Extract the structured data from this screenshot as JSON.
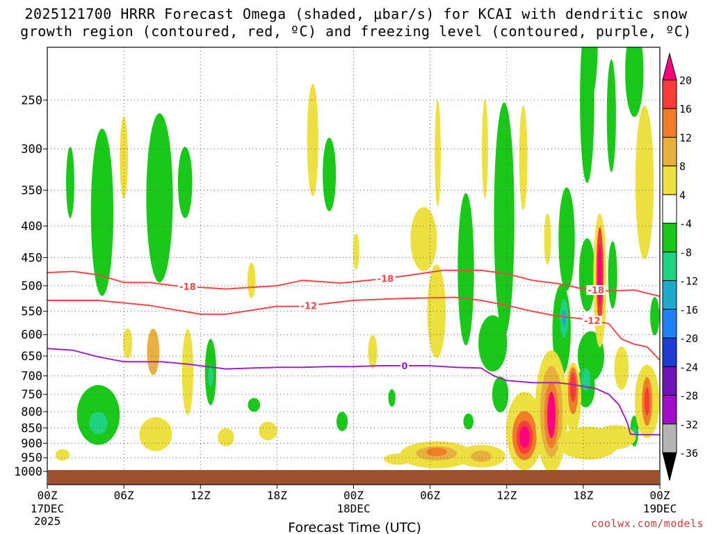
{
  "chart_data": {
    "type": "heatmap",
    "title_line1": "2025121700 HRRR Forecast Omega (shaded, μbar/s) for KCAI with dendritic snow",
    "title_line2": "growth region (contoured, red, ºC) and freezing level (contoured, purple, ºC)",
    "xlabel": "Forecast Time (UTC)",
    "x_range_hours": [
      0,
      48
    ],
    "x_ticks": [
      {
        "h": 0,
        "l1": "00Z",
        "l2": "17DEC",
        "l3": "2025"
      },
      {
        "h": 6,
        "l1": "06Z"
      },
      {
        "h": 12,
        "l1": "12Z"
      },
      {
        "h": 18,
        "l1": "18Z"
      },
      {
        "h": 24,
        "l1": "00Z",
        "l2": "18DEC"
      },
      {
        "h": 30,
        "l1": "06Z"
      },
      {
        "h": 36,
        "l1": "12Z"
      },
      {
        "h": 42,
        "l1": "18Z"
      },
      {
        "h": 48,
        "l1": "00Z",
        "l2": "19DEC"
      }
    ],
    "y_label_pressures": [
      "250",
      "300",
      "350",
      "400",
      "450",
      "500",
      "550",
      "600",
      "650",
      "700",
      "750",
      "800",
      "850",
      "900",
      "950",
      "1000"
    ],
    "y_range_hpa": [
      200,
      1030
    ],
    "colorbar": {
      "labels": [
        "20",
        "16",
        "12",
        "8",
        "4",
        "-4",
        "-8",
        "-12",
        "-16",
        "-20",
        "-24",
        "-28",
        "-32",
        "-36"
      ],
      "colors": [
        "#ff0080",
        "#ff3a3a",
        "#f07d28",
        "#e8b03c",
        "#ede040",
        "#ffffff",
        "#19c819",
        "#1ed282",
        "#1eaacc",
        "#1e82ff",
        "#1e3cd2",
        "#6e14b4",
        "#a010c8",
        "#b4b4b4"
      ]
    },
    "contours": [
      {
        "label": "-18",
        "color": "#f04646",
        "points": [
          [
            0,
            476
          ],
          [
            2,
            474
          ],
          [
            4,
            480
          ],
          [
            6,
            494
          ],
          [
            8,
            494
          ],
          [
            10,
            500
          ],
          [
            14,
            506
          ],
          [
            18,
            500
          ],
          [
            20,
            490
          ],
          [
            23,
            495
          ],
          [
            26,
            488
          ],
          [
            28,
            482
          ],
          [
            31,
            472
          ],
          [
            34,
            472
          ],
          [
            36,
            478
          ],
          [
            38,
            490
          ],
          [
            40,
            496
          ],
          [
            42,
            506
          ],
          [
            44,
            510
          ],
          [
            46,
            508
          ],
          [
            48,
            520
          ]
        ]
      },
      {
        "label": "-12",
        "color": "#f04646",
        "points": [
          [
            0,
            528
          ],
          [
            4,
            528
          ],
          [
            8,
            538
          ],
          [
            12,
            556
          ],
          [
            14,
            556
          ],
          [
            18,
            540
          ],
          [
            20,
            540
          ],
          [
            22,
            534
          ],
          [
            24,
            528
          ],
          [
            28,
            524
          ],
          [
            32,
            522
          ],
          [
            34,
            528
          ],
          [
            36,
            538
          ],
          [
            38,
            550
          ],
          [
            40,
            560
          ],
          [
            42,
            566
          ],
          [
            44,
            576
          ],
          [
            45,
            610
          ],
          [
            46,
            622
          ],
          [
            47,
            628
          ],
          [
            48,
            660
          ]
        ]
      },
      {
        "label": "0",
        "color": "#a020c8",
        "points": [
          [
            0,
            632
          ],
          [
            2,
            636
          ],
          [
            4,
            652
          ],
          [
            6,
            664
          ],
          [
            9,
            664
          ],
          [
            11,
            670
          ],
          [
            14,
            682
          ],
          [
            16,
            680
          ],
          [
            18,
            678
          ],
          [
            20,
            678
          ],
          [
            22,
            676
          ],
          [
            24,
            676
          ],
          [
            26,
            674
          ],
          [
            28,
            674
          ],
          [
            30,
            674
          ],
          [
            32,
            678
          ],
          [
            34,
            680
          ],
          [
            35,
            700
          ],
          [
            36,
            712
          ],
          [
            38,
            718
          ],
          [
            40,
            718
          ],
          [
            41,
            722
          ],
          [
            42,
            728
          ],
          [
            43,
            734
          ],
          [
            44,
            750
          ],
          [
            44.8,
            780
          ],
          [
            45.3,
            820
          ],
          [
            45.5,
            840
          ],
          [
            45.7,
            870
          ],
          [
            46.5,
            872
          ],
          [
            48,
            872
          ]
        ]
      }
    ],
    "omega_features": [
      {
        "h": 1.8,
        "p": 340,
        "w": 0.4,
        "ph": 90,
        "v": -6
      },
      {
        "h": 4.3,
        "p": 380,
        "w": 1.1,
        "ph": 230,
        "v": -8
      },
      {
        "h": 6.0,
        "p": 310,
        "w": 0.4,
        "ph": 95,
        "v": 5
      },
      {
        "h": 8.8,
        "p": 360,
        "w": 1.3,
        "ph": 220,
        "v": -6
      },
      {
        "h": 10.8,
        "p": 340,
        "w": 0.7,
        "ph": 90,
        "v": -6
      },
      {
        "h": 6.3,
        "p": 620,
        "w": 0.45,
        "ph": 70,
        "v": 6
      },
      {
        "h": 8.3,
        "p": 640,
        "w": 0.6,
        "ph": 110,
        "v": 9
      },
      {
        "h": 4.0,
        "p": 810,
        "w": 2.1,
        "ph": 180,
        "v": -9
      },
      {
        "h": 4.0,
        "p": 835,
        "w": 0.9,
        "ph": 70,
        "v": -12
      },
      {
        "h": 1.2,
        "p": 940,
        "w": 0.7,
        "ph": 40,
        "v": 5
      },
      {
        "h": 8.5,
        "p": 870,
        "w": 1.6,
        "ph": 110,
        "v": 5
      },
      {
        "h": 11.0,
        "p": 690,
        "w": 0.55,
        "ph": 220,
        "v": 5
      },
      {
        "h": 12.8,
        "p": 690,
        "w": 0.55,
        "ph": 170,
        "v": -9
      },
      {
        "h": 12.8,
        "p": 700,
        "w": 0.25,
        "ph": 55,
        "v": -13
      },
      {
        "h": 16.0,
        "p": 490,
        "w": 0.4,
        "ph": 65,
        "v": 5
      },
      {
        "h": 16.2,
        "p": 780,
        "w": 0.6,
        "ph": 40,
        "v": -7
      },
      {
        "h": 14.0,
        "p": 880,
        "w": 0.8,
        "ph": 60,
        "v": 5
      },
      {
        "h": 17.3,
        "p": 860,
        "w": 0.9,
        "ph": 60,
        "v": 5
      },
      {
        "h": 20.8,
        "p": 290,
        "w": 0.55,
        "ph": 120,
        "v": 5
      },
      {
        "h": 22.1,
        "p": 330,
        "w": 0.65,
        "ph": 90,
        "v": -8
      },
      {
        "h": 24.2,
        "p": 440,
        "w": 0.3,
        "ph": 60,
        "v": 5
      },
      {
        "h": 23.1,
        "p": 830,
        "w": 0.55,
        "ph": 60,
        "v": -8
      },
      {
        "h": 25.5,
        "p": 640,
        "w": 0.45,
        "ph": 80,
        "v": 6
      },
      {
        "h": 27.0,
        "p": 760,
        "w": 0.35,
        "ph": 50,
        "v": -8
      },
      {
        "h": 29.5,
        "p": 420,
        "w": 1.3,
        "ph": 100,
        "v": 5
      },
      {
        "h": 30.6,
        "p": 305,
        "w": 0.3,
        "ph": 120,
        "v": 5
      },
      {
        "h": 30.5,
        "p": 550,
        "w": 0.9,
        "ph": 190,
        "v": 5
      },
      {
        "h": 32.8,
        "p": 470,
        "w": 0.8,
        "ph": 260,
        "v": -8
      },
      {
        "h": 32.8,
        "p": 460,
        "w": 0.35,
        "ph": 70,
        "v": -11
      },
      {
        "h": 33.0,
        "p": 830,
        "w": 0.5,
        "ph": 50,
        "v": -10
      },
      {
        "h": 34.3,
        "p": 300,
        "w": 0.3,
        "ph": 110,
        "v": 5
      },
      {
        "h": 35.8,
        "p": 390,
        "w": 1.0,
        "ph": 320,
        "v": -8
      },
      {
        "h": 34.9,
        "p": 620,
        "w": 1.4,
        "ph": 130,
        "v": -8
      },
      {
        "h": 35.5,
        "p": 750,
        "w": 0.8,
        "ph": 100,
        "v": -8
      },
      {
        "h": 37.3,
        "p": 310,
        "w": 0.4,
        "ph": 120,
        "v": 5
      },
      {
        "h": 39.2,
        "p": 420,
        "w": 0.35,
        "ph": 80,
        "v": 5
      },
      {
        "h": 40.7,
        "p": 420,
        "w": 0.8,
        "ph": 160,
        "v": -8
      },
      {
        "h": 40.3,
        "p": 590,
        "w": 0.9,
        "ph": 200,
        "v": -8
      },
      {
        "h": 40.5,
        "p": 565,
        "w": 0.4,
        "ph": 80,
        "v": -13
      },
      {
        "h": 40.5,
        "p": 565,
        "w": 0.2,
        "ph": 35,
        "v": -17
      },
      {
        "h": 42.3,
        "p": 480,
        "w": 0.8,
        "ph": 130,
        "v": -8
      },
      {
        "h": 42.6,
        "p": 650,
        "w": 1.3,
        "ph": 120,
        "v": -8
      },
      {
        "h": 42.2,
        "p": 730,
        "w": 0.9,
        "ph": 110,
        "v": -8
      },
      {
        "h": 42.2,
        "p": 710,
        "w": 0.45,
        "ph": 60,
        "v": -13
      },
      {
        "h": 42.3,
        "p": 250,
        "w": 0.7,
        "ph": 150,
        "v": -8
      },
      {
        "h": 42.5,
        "p": 200,
        "w": 0.8,
        "ph": 90,
        "v": -8
      },
      {
        "h": 43.3,
        "p": 490,
        "w": 0.65,
        "ph": 240,
        "v": 6
      },
      {
        "h": 43.3,
        "p": 480,
        "w": 0.35,
        "ph": 170,
        "v": 16
      },
      {
        "h": 43.3,
        "p": 480,
        "w": 0.2,
        "ph": 110,
        "v": 20
      },
      {
        "h": 44.2,
        "p": 265,
        "w": 0.45,
        "ph": 110,
        "v": -8
      },
      {
        "h": 44.3,
        "p": 480,
        "w": 0.45,
        "ph": 120,
        "v": -8
      },
      {
        "h": 46.0,
        "p": 225,
        "w": 0.9,
        "ph": 75,
        "v": -8
      },
      {
        "h": 46.8,
        "p": 340,
        "w": 0.9,
        "ph": 190,
        "v": 5
      },
      {
        "h": 46.0,
        "p": 860,
        "w": 0.4,
        "ph": 100,
        "v": -8
      },
      {
        "h": 46.0,
        "p": 870,
        "w": 0.2,
        "ph": 50,
        "v": -13
      },
      {
        "h": 47.6,
        "p": 560,
        "w": 0.45,
        "ph": 80,
        "v": -8
      },
      {
        "h": 45.0,
        "p": 680,
        "w": 0.7,
        "ph": 110,
        "v": 5
      },
      {
        "h": 47.0,
        "p": 770,
        "w": 1.2,
        "ph": 210,
        "v": 7
      },
      {
        "h": 47.0,
        "p": 770,
        "w": 0.5,
        "ph": 140,
        "v": 12
      },
      {
        "h": 47.0,
        "p": 770,
        "w": 0.25,
        "ph": 80,
        "v": 17
      },
      {
        "h": 30.5,
        "p": 940,
        "w": 3.6,
        "ph": 95,
        "v": 6
      },
      {
        "h": 30.5,
        "p": 935,
        "w": 2.0,
        "ph": 50,
        "v": 9
      },
      {
        "h": 30.5,
        "p": 930,
        "w": 1.0,
        "ph": 30,
        "v": 12
      },
      {
        "h": 34.0,
        "p": 945,
        "w": 2.4,
        "ph": 80,
        "v": 6
      },
      {
        "h": 34.0,
        "p": 945,
        "w": 1.0,
        "ph": 40,
        "v": 9
      },
      {
        "h": 27.5,
        "p": 955,
        "w": 1.4,
        "ph": 40,
        "v": 5
      },
      {
        "h": 37.4,
        "p": 860,
        "w": 1.8,
        "ph": 250,
        "v": 6
      },
      {
        "h": 37.4,
        "p": 875,
        "w": 1.2,
        "ph": 160,
        "v": 12
      },
      {
        "h": 37.4,
        "p": 880,
        "w": 0.8,
        "ph": 110,
        "v": 16
      },
      {
        "h": 37.4,
        "p": 880,
        "w": 0.5,
        "ph": 70,
        "v": 20
      },
      {
        "h": 39.5,
        "p": 800,
        "w": 1.6,
        "ph": 360,
        "v": 6
      },
      {
        "h": 39.5,
        "p": 800,
        "w": 1.1,
        "ph": 270,
        "v": 10
      },
      {
        "h": 39.5,
        "p": 810,
        "w": 0.7,
        "ph": 200,
        "v": 14
      },
      {
        "h": 39.5,
        "p": 810,
        "w": 0.4,
        "ph": 140,
        "v": 20
      },
      {
        "h": 41.2,
        "p": 760,
        "w": 0.8,
        "ph": 200,
        "v": 6
      },
      {
        "h": 41.2,
        "p": 740,
        "w": 0.5,
        "ph": 130,
        "v": 12
      },
      {
        "h": 41.2,
        "p": 730,
        "w": 0.3,
        "ph": 80,
        "v": 18
      },
      {
        "h": 42.4,
        "p": 900,
        "w": 3.0,
        "ph": 110,
        "v": 6
      },
      {
        "h": 44.5,
        "p": 880,
        "w": 2.0,
        "ph": 80,
        "v": 5
      }
    ]
  },
  "credit": "coolwx.com/models"
}
